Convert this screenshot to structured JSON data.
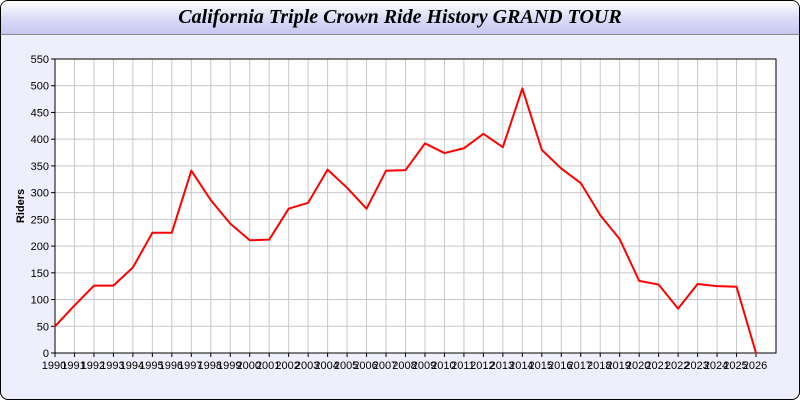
{
  "chart_data": {
    "type": "line",
    "title": "California Triple Crown Ride History GRAND TOUR",
    "xlabel": "",
    "ylabel": "Riders",
    "ylim": [
      0,
      550
    ],
    "xlim": [
      1990,
      2027
    ],
    "grid": true,
    "yticks": [
      0,
      50,
      100,
      150,
      200,
      250,
      300,
      350,
      400,
      450,
      500,
      550
    ],
    "x": [
      1990,
      1991,
      1992,
      1993,
      1994,
      1995,
      1996,
      1997,
      1998,
      1999,
      2000,
      2001,
      2002,
      2003,
      2004,
      2005,
      2006,
      2007,
      2008,
      2009,
      2010,
      2011,
      2012,
      2013,
      2014,
      2015,
      2016,
      2017,
      2018,
      2019,
      2020,
      2021,
      2022,
      2023,
      2024,
      2025,
      2026
    ],
    "series": [
      {
        "values": [
          50,
          89,
          126,
          126,
          160,
          225,
          225,
          341,
          286,
          242,
          211,
          212,
          270,
          281,
          343,
          309,
          270,
          341,
          342,
          392,
          374,
          383,
          410,
          385,
          495,
          380,
          345,
          318,
          258,
          213,
          135,
          128,
          83,
          129,
          125,
          124,
          0
        ],
        "color": "#ff0000"
      }
    ]
  }
}
